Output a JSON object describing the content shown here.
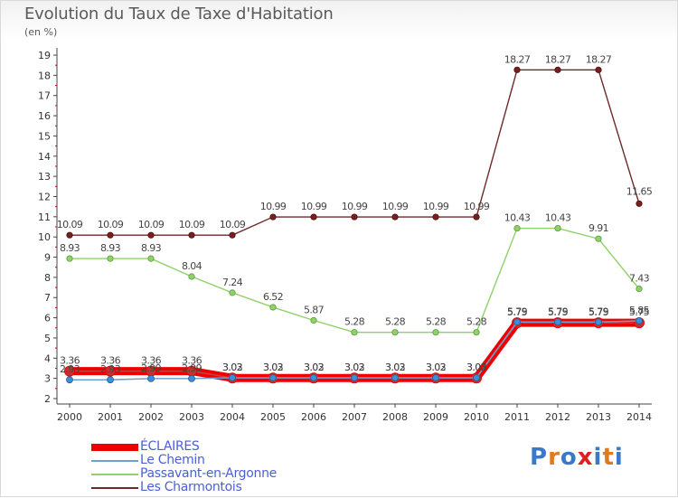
{
  "title": "Evolution du Taux de Taxe d'Habitation",
  "subtitle": "(en %)",
  "logo": {
    "text": "Proxiti",
    "letter_colors": [
      "#3a78c8",
      "#e07a1e",
      "#3a78c8",
      "#e02020",
      "#3a78c8",
      "#e07a1e",
      "#3a78c8"
    ]
  },
  "chart_data": {
    "type": "line",
    "x": [
      2000,
      2001,
      2002,
      2003,
      2004,
      2005,
      2006,
      2007,
      2008,
      2009,
      2010,
      2011,
      2012,
      2013,
      2014
    ],
    "ylim": [
      2,
      19
    ],
    "yticks": [
      2,
      3,
      4,
      5,
      6,
      7,
      8,
      9,
      10,
      11,
      12,
      13,
      14,
      15,
      16,
      17,
      18,
      19
    ],
    "grid": false,
    "legend_position": "bottom-left",
    "series": [
      {
        "name": "ÉCLAIRES",
        "color": "#ee0000",
        "values": [
          3.36,
          3.36,
          3.36,
          3.36,
          3.02,
          3.02,
          3.02,
          3.02,
          3.02,
          3.02,
          3.02,
          5.75,
          5.75,
          5.75,
          5.75
        ]
      },
      {
        "name": "Le Chemin",
        "color": "#6fa0d0",
        "values": [
          2.93,
          2.93,
          2.99,
          2.99,
          3.03,
          3.03,
          3.03,
          3.03,
          3.03,
          3.03,
          3.03,
          5.79,
          5.79,
          5.79,
          5.85
        ]
      },
      {
        "name": "Passavant-en-Argonne",
        "color": "#8fd16a",
        "values": [
          8.93,
          8.93,
          8.93,
          8.04,
          7.24,
          6.52,
          5.87,
          5.28,
          5.28,
          5.28,
          5.28,
          10.43,
          10.43,
          9.91,
          7.43
        ]
      },
      {
        "name": "Les Charmontois",
        "color": "#6e2a2a",
        "values": [
          10.09,
          10.09,
          10.09,
          10.09,
          10.09,
          10.99,
          10.99,
          10.99,
          10.99,
          10.99,
          10.99,
          18.27,
          18.27,
          18.27,
          11.65
        ]
      }
    ]
  }
}
